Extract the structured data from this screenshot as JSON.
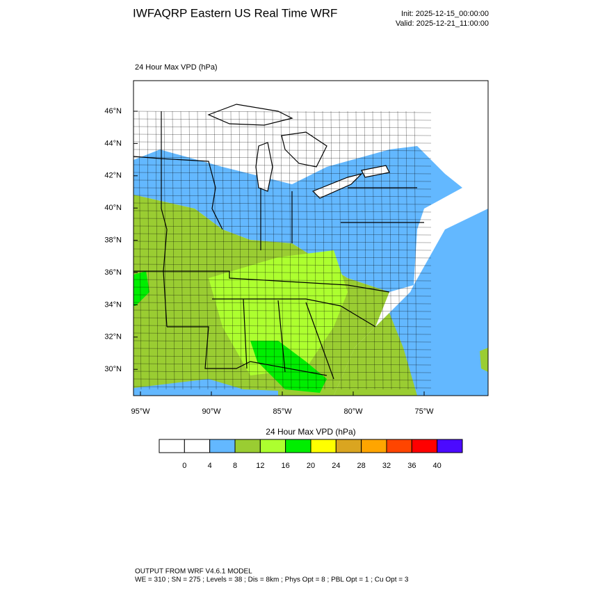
{
  "header": {
    "title": "IWFAQRP Eastern US Real Time WRF",
    "init": "Init: 2025-12-15_00:00:00",
    "valid": "Valid: 2025-12-21_11:00:00"
  },
  "map": {
    "title": "24 Hour Max VPD   (hPa)",
    "lat_labels": [
      "46°N",
      "44°N",
      "42°N",
      "40°N",
      "38°N",
      "36°N",
      "34°N",
      "32°N",
      "30°N"
    ],
    "lon_labels": [
      "95°W",
      "90°W",
      "85°W",
      "80°W",
      "75°W"
    ]
  },
  "colorbar": {
    "title": "24 Hour Max VPD  (hPa)",
    "levels": [
      0,
      4,
      8,
      12,
      16,
      20,
      24,
      28,
      32,
      36,
      40
    ],
    "colors": [
      "#ffffff",
      "#ffffff",
      "#63b8ff",
      "#9acd32",
      "#adff2f",
      "#00ee00",
      "#ffff00",
      "#daa520",
      "#ffa500",
      "#ff4500",
      "#ff0000",
      "#4b0aff"
    ]
  },
  "footer": {
    "line1": "OUTPUT FROM WRF V4.6.1 MODEL",
    "line2": "WE = 310 ; SN = 275 ; Levels = 38 ; Dis = 8km ; Phys Opt = 8 ; PBL Opt = 1 ; Cu Opt = 3"
  }
}
